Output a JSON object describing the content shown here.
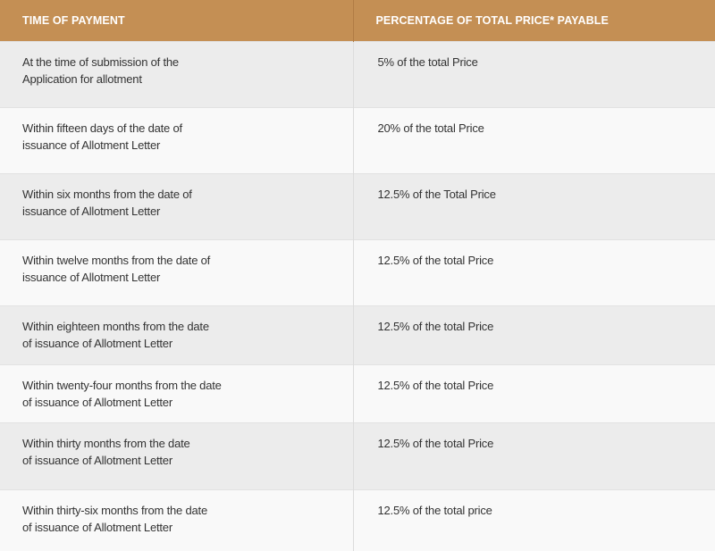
{
  "colors": {
    "header_bg": "#c48f54",
    "row_alt": "#ececec",
    "row": "#f9f9f9"
  },
  "header": {
    "col1": "TIME OF PAYMENT",
    "col2": "PERCENTAGE OF TOTAL PRICE* PAYABLE"
  },
  "rows": [
    {
      "time": [
        "At the time of submission of the",
        "Application for allotment"
      ],
      "percentage": "5% of the total Price"
    },
    {
      "time": [
        "Within fifteen days of the date of",
        "issuance of Allotment Letter"
      ],
      "percentage": "20% of the total Price"
    },
    {
      "time": [
        "Within six months from the date of",
        "issuance of Allotment Letter"
      ],
      "percentage": "12.5% of the Total Price"
    },
    {
      "time": [
        "Within twelve months from the date of",
        "issuance of Allotment Letter"
      ],
      "percentage": "12.5% of the total Price"
    },
    {
      "time": [
        "Within eighteen months from the date",
        "of issuance of Allotment Letter"
      ],
      "percentage": "12.5% of the total Price"
    },
    {
      "time": [
        "Within twenty-four months from the date",
        "of issuance of Allotment Letter"
      ],
      "percentage": "12.5% of the total Price"
    },
    {
      "time": [
        "Within thirty months from the date",
        "of issuance of Allotment Letter"
      ],
      "percentage": "12.5% of the total Price"
    },
    {
      "time": [
        "Within thirty-six months from the date",
        "of issuance of Allotment Letter"
      ],
      "percentage": "12.5% of the total price"
    }
  ]
}
